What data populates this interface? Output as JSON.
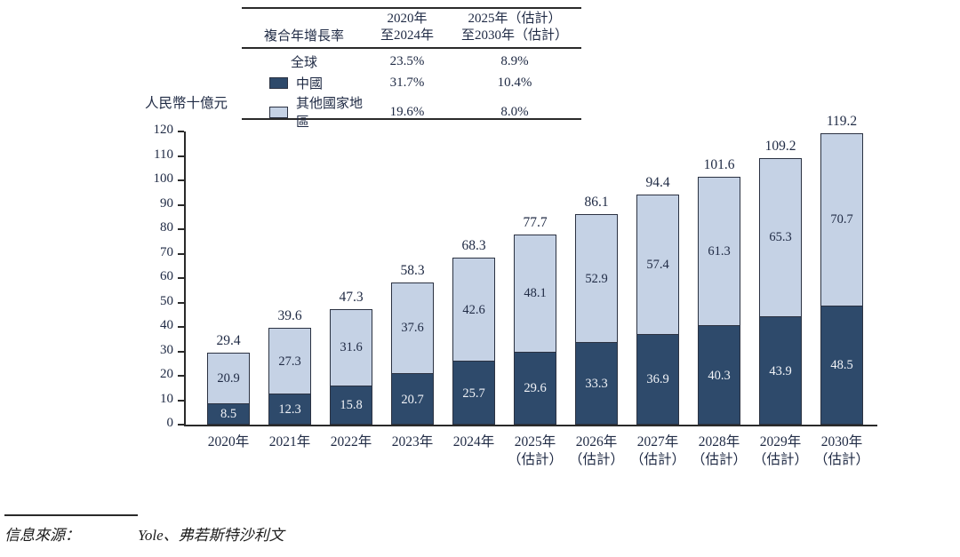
{
  "table": {
    "header": {
      "metric": "複合年增長率",
      "period1_line1": "2020年",
      "period1_line2": "至2024年",
      "period2_line1": "2025年（估計）",
      "period2_line2": "至2030年（估計）"
    },
    "rows": [
      {
        "key": "global",
        "label": "全球",
        "swatch": null,
        "cagr_2020_2024": "23.5%",
        "cagr_2025_2030": "8.9%"
      },
      {
        "key": "china",
        "label": "中國",
        "swatch": "china",
        "cagr_2020_2024": "31.7%",
        "cagr_2025_2030": "10.4%"
      },
      {
        "key": "others",
        "label": "其他國家地區",
        "swatch": "others",
        "cagr_2020_2024": "19.6%",
        "cagr_2025_2030": "8.0%"
      }
    ]
  },
  "chart": {
    "unit_label": "人民幣十億元",
    "y_ticks": [
      0,
      10,
      20,
      30,
      40,
      50,
      60,
      70,
      80,
      90,
      100,
      110,
      120
    ],
    "x_tick_lines": [
      [
        "2020年"
      ],
      [
        "2021年"
      ],
      [
        "2022年"
      ],
      [
        "2023年"
      ],
      [
        "2024年"
      ],
      [
        "2025年",
        "（估計）"
      ],
      [
        "2026年",
        "（估計）"
      ],
      [
        "2027年",
        "（估計）"
      ],
      [
        "2028年",
        "（估計）"
      ],
      [
        "2029年",
        "（估計）"
      ],
      [
        "2030年",
        "（估計）"
      ]
    ]
  },
  "chart_data": {
    "type": "bar",
    "stacked": true,
    "title": "",
    "ylabel": "人民幣十億元",
    "ylim": [
      0,
      120
    ],
    "grid": false,
    "legend_position": "top-table",
    "categories": [
      "2020年",
      "2021年",
      "2022年",
      "2023年",
      "2024年",
      "2025年（估計）",
      "2026年（估計）",
      "2027年（估計）",
      "2028年（估計）",
      "2029年（估計）",
      "2030年（估計）"
    ],
    "series": [
      {
        "key": "china",
        "name": "中國",
        "color": "#2E4A6B",
        "values": [
          8.5,
          12.3,
          15.8,
          20.7,
          25.7,
          29.6,
          33.3,
          36.9,
          40.3,
          43.9,
          48.5
        ]
      },
      {
        "key": "others",
        "name": "其他國家地區",
        "color": "#C5D2E5",
        "values": [
          20.9,
          27.3,
          31.6,
          37.6,
          42.6,
          48.1,
          52.9,
          57.4,
          61.3,
          65.3,
          70.7
        ]
      }
    ],
    "totals": [
      29.4,
      39.6,
      47.3,
      58.3,
      68.3,
      77.7,
      86.1,
      94.4,
      101.6,
      109.2,
      119.2
    ]
  },
  "colors": {
    "axis_line": "#2a2a2a",
    "bar_border": "#2b3242",
    "text_dark": "#202b45",
    "text_on_dark": "#f2f4f8"
  },
  "source": {
    "label": "信息來源：",
    "text": "Yole、弗若斯特沙利文"
  }
}
